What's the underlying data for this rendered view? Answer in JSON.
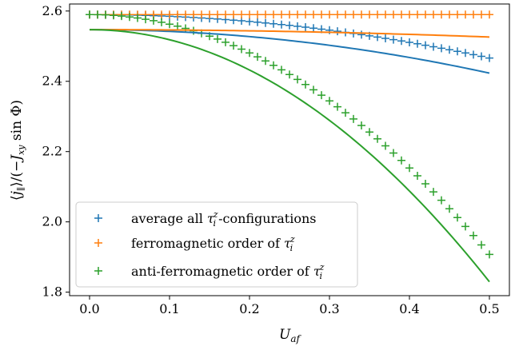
{
  "chart_data": {
    "type": "line",
    "xlabel": "U_af",
    "ylabel": "⟨j_∥⟩/(−J_xy sin Φ)",
    "xlim": [
      -0.025,
      0.525
    ],
    "ylim": [
      1.79,
      2.62
    ],
    "xticks": [
      "0.0",
      "0.1",
      "0.2",
      "0.3",
      "0.4",
      "0.5"
    ],
    "xtick_values": [
      0.0,
      0.1,
      0.2,
      0.3,
      0.4,
      0.5
    ],
    "yticks": [
      "1.8",
      "2.0",
      "2.2",
      "2.4",
      "2.6"
    ],
    "ytick_values": [
      1.8,
      2.0,
      2.2,
      2.4,
      2.6
    ],
    "grid": false,
    "legend_position": "lower-left",
    "legend": [
      {
        "marker": "+",
        "color": "#1f77b4",
        "prefix": "average all ",
        "suffix": "-configurations"
      },
      {
        "marker": "+",
        "color": "#ff7f0e",
        "prefix": "ferromagnetic order of ",
        "suffix": ""
      },
      {
        "marker": "+",
        "color": "#2ca02c",
        "prefix": "anti-ferromagnetic order of ",
        "suffix": ""
      }
    ],
    "series": [
      {
        "color": "#1f77b4",
        "style": "markers",
        "x_range": [
          0.0,
          0.5
        ],
        "n_points": 51,
        "start": 2.59,
        "coef": 0.495
      },
      {
        "color": "#ff7f0e",
        "style": "markers",
        "x_range": [
          0.0,
          0.5
        ],
        "n_points": 51,
        "start": 2.59,
        "coef": 0.0
      },
      {
        "color": "#2ca02c",
        "style": "markers",
        "x_range": [
          0.0,
          0.5
        ],
        "n_points": 51,
        "start": 2.59,
        "coef": 2.73
      },
      {
        "color": "#1f77b4",
        "style": "line",
        "x_range": [
          0.0,
          0.5
        ],
        "start": 2.547,
        "coef": 0.495
      },
      {
        "color": "#ff7f0e",
        "style": "line",
        "x_range": [
          0.0,
          0.5
        ],
        "start": 2.547,
        "coef": 0.084
      },
      {
        "color": "#2ca02c",
        "style": "line",
        "x_range": [
          0.0,
          0.5
        ],
        "start": 2.547,
        "coef": 2.87
      }
    ]
  }
}
